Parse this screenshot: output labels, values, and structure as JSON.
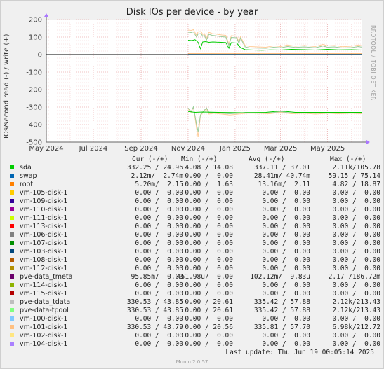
{
  "chart_data": {
    "type": "line",
    "title": "Disk IOs per device - by year",
    "ylabel": "IOs/second read (-) / write (+)",
    "side_text": "RRDTOOL / TOBI OETIKER",
    "ylim": [
      -500,
      200
    ],
    "y_ticks": [
      200,
      100,
      0,
      -100,
      -200,
      -300,
      -400,
      -500
    ],
    "y_tick_labels": [
      "200",
      "100",
      "0",
      "-100",
      "-200",
      "-300",
      "-400",
      "-500"
    ],
    "x_tick_labels": [
      "May 2024",
      "Jul 2024",
      "Sep 2024",
      "Nov 2024",
      "Jan 2025",
      "Mar 2025",
      "May 2025"
    ],
    "x_tick_dates": [
      "2024-05-01",
      "2024-07-01",
      "2024-09-01",
      "2024-11-01",
      "2025-01-01",
      "2025-03-01",
      "2025-05-01"
    ],
    "x_range": [
      "2024-05-01",
      "2025-06-15"
    ],
    "grid": true,
    "series": [
      {
        "name": "pve-data_tdata",
        "color": "#ffcc99",
        "direction": "write",
        "points": [
          [
            "2024-11-01",
            140
          ],
          [
            "2024-11-05",
            138
          ],
          [
            "2024-11-08",
            142
          ],
          [
            "2024-11-12",
            110
          ],
          [
            "2024-11-14",
            130
          ],
          [
            "2024-11-18",
            132
          ],
          [
            "2024-11-20",
            115
          ],
          [
            "2024-11-22",
            120
          ],
          [
            "2024-11-25",
            95
          ],
          [
            "2024-11-28",
            128
          ],
          [
            "2024-12-02",
            120
          ],
          [
            "2024-12-06",
            118
          ],
          [
            "2024-12-10",
            115
          ],
          [
            "2024-12-15",
            112
          ],
          [
            "2024-12-20",
            110
          ],
          [
            "2024-12-24",
            60
          ],
          [
            "2024-12-27",
            108
          ],
          [
            "2025-01-03",
            106
          ],
          [
            "2025-01-06",
            72
          ],
          [
            "2025-01-08",
            103
          ],
          [
            "2025-01-14",
            52
          ],
          [
            "2025-01-20",
            46
          ],
          [
            "2025-01-30",
            44
          ],
          [
            "2025-02-10",
            42
          ],
          [
            "2025-02-20",
            50
          ],
          [
            "2025-03-01",
            46
          ],
          [
            "2025-03-10",
            55
          ],
          [
            "2025-03-20",
            48
          ],
          [
            "2025-04-01",
            52
          ],
          [
            "2025-04-15",
            46
          ],
          [
            "2025-04-25",
            58
          ],
          [
            "2025-05-01",
            50
          ],
          [
            "2025-05-10",
            52
          ],
          [
            "2025-05-20",
            45
          ],
          [
            "2025-06-01",
            48
          ],
          [
            "2025-06-10",
            55
          ],
          [
            "2025-06-15",
            50
          ]
        ]
      },
      {
        "name": "pve-data-tpool",
        "color": "#99cc99",
        "direction": "write",
        "points": [
          [
            "2024-11-01",
            128
          ],
          [
            "2024-11-05",
            126
          ],
          [
            "2024-11-08",
            130
          ],
          [
            "2024-11-12",
            100
          ],
          [
            "2024-11-14",
            118
          ],
          [
            "2024-11-18",
            120
          ],
          [
            "2024-11-20",
            105
          ],
          [
            "2024-11-22",
            110
          ],
          [
            "2024-11-25",
            85
          ],
          [
            "2024-11-28",
            116
          ],
          [
            "2024-12-02",
            110
          ],
          [
            "2024-12-06",
            108
          ],
          [
            "2024-12-10",
            105
          ],
          [
            "2024-12-15",
            102
          ],
          [
            "2024-12-20",
            100
          ],
          [
            "2024-12-24",
            52
          ],
          [
            "2024-12-27",
            98
          ],
          [
            "2025-01-03",
            96
          ],
          [
            "2025-01-06",
            64
          ],
          [
            "2025-01-08",
            94
          ],
          [
            "2025-01-14",
            44
          ],
          [
            "2025-01-20",
            38
          ],
          [
            "2025-01-30",
            37
          ],
          [
            "2025-02-10",
            36
          ],
          [
            "2025-02-20",
            42
          ],
          [
            "2025-03-01",
            39
          ],
          [
            "2025-03-10",
            46
          ],
          [
            "2025-03-20",
            41
          ],
          [
            "2025-04-01",
            44
          ],
          [
            "2025-04-15",
            39
          ],
          [
            "2025-04-25",
            49
          ],
          [
            "2025-05-01",
            42
          ],
          [
            "2025-05-10",
            44
          ],
          [
            "2025-05-20",
            38
          ],
          [
            "2025-06-01",
            40
          ],
          [
            "2025-06-10",
            46
          ],
          [
            "2025-06-15",
            42
          ]
        ]
      },
      {
        "name": "sda",
        "color": "#00cc00",
        "direction": "write",
        "points": [
          [
            "2024-11-01",
            82
          ],
          [
            "2024-11-06",
            80
          ],
          [
            "2024-11-10",
            85
          ],
          [
            "2024-11-14",
            70
          ],
          [
            "2024-11-17",
            34
          ],
          [
            "2024-11-20",
            72
          ],
          [
            "2024-11-24",
            74
          ],
          [
            "2024-11-28",
            70
          ],
          [
            "2024-12-03",
            72
          ],
          [
            "2024-12-08",
            71
          ],
          [
            "2024-12-14",
            70
          ],
          [
            "2024-12-20",
            69
          ],
          [
            "2024-12-24",
            36
          ],
          [
            "2024-12-27",
            68
          ],
          [
            "2025-01-03",
            66
          ],
          [
            "2025-01-08",
            40
          ],
          [
            "2025-01-14",
            28
          ],
          [
            "2025-01-25",
            26
          ],
          [
            "2025-02-05",
            25
          ],
          [
            "2025-02-15",
            27
          ],
          [
            "2025-03-01",
            26
          ],
          [
            "2025-03-15",
            30
          ],
          [
            "2025-04-01",
            28
          ],
          [
            "2025-04-15",
            26
          ],
          [
            "2025-05-01",
            30
          ],
          [
            "2025-05-15",
            27
          ],
          [
            "2025-06-01",
            28
          ],
          [
            "2025-06-15",
            26
          ]
        ]
      },
      {
        "name": "root",
        "color": "#ff8000",
        "direction": "write",
        "points": [
          [
            "2024-11-01",
            4
          ],
          [
            "2025-06-15",
            4
          ]
        ]
      },
      {
        "name": "swap",
        "color": "#0066b3",
        "direction": "write",
        "points": [
          [
            "2024-11-01",
            1
          ],
          [
            "2025-06-15",
            1
          ]
        ]
      },
      {
        "name": "pve-data_tdata",
        "color": "#ffcc99",
        "direction": "read",
        "points": [
          [
            "2024-11-01",
            -310
          ],
          [
            "2024-11-05",
            -330
          ],
          [
            "2024-11-08",
            -300
          ],
          [
            "2024-11-12",
            -420
          ],
          [
            "2024-11-14",
            -470
          ],
          [
            "2024-11-17",
            -350
          ],
          [
            "2024-11-22",
            -320
          ],
          [
            "2024-11-25",
            -310
          ],
          [
            "2024-11-28",
            -340
          ],
          [
            "2024-12-05",
            -335
          ],
          [
            "2024-12-15",
            -340
          ],
          [
            "2024-12-25",
            -345
          ],
          [
            "2025-01-05",
            -340
          ],
          [
            "2025-01-15",
            -335
          ],
          [
            "2025-02-01",
            -335
          ],
          [
            "2025-02-15",
            -338
          ],
          [
            "2025-03-01",
            -330
          ],
          [
            "2025-03-15",
            -338
          ],
          [
            "2025-04-01",
            -335
          ],
          [
            "2025-04-15",
            -340
          ],
          [
            "2025-05-01",
            -335
          ],
          [
            "2025-05-15",
            -338
          ],
          [
            "2025-06-01",
            -335
          ],
          [
            "2025-06-15",
            -338
          ]
        ]
      },
      {
        "name": "pve-data-tpool",
        "color": "#99cc99",
        "direction": "read",
        "points": [
          [
            "2024-11-01",
            -305
          ],
          [
            "2024-11-05",
            -325
          ],
          [
            "2024-11-08",
            -298
          ],
          [
            "2024-11-12",
            -400
          ],
          [
            "2024-11-14",
            -440
          ],
          [
            "2024-11-17",
            -345
          ],
          [
            "2024-11-22",
            -318
          ],
          [
            "2024-11-25",
            -305
          ],
          [
            "2024-11-28",
            -330
          ],
          [
            "2024-12-05",
            -330
          ],
          [
            "2024-12-15",
            -335
          ],
          [
            "2024-12-25",
            -338
          ],
          [
            "2025-01-05",
            -335
          ],
          [
            "2025-01-15",
            -330
          ],
          [
            "2025-02-01",
            -332
          ],
          [
            "2025-02-15",
            -333
          ],
          [
            "2025-03-01",
            -326
          ],
          [
            "2025-03-15",
            -334
          ],
          [
            "2025-04-01",
            -330
          ],
          [
            "2025-04-15",
            -335
          ],
          [
            "2025-05-01",
            -330
          ],
          [
            "2025-05-15",
            -333
          ],
          [
            "2025-06-01",
            -330
          ],
          [
            "2025-06-15",
            -334
          ]
        ]
      },
      {
        "name": "sda",
        "color": "#00cc00",
        "direction": "read",
        "points": [
          [
            "2024-11-01",
            -325
          ],
          [
            "2024-11-10",
            -330
          ],
          [
            "2024-11-20",
            -328
          ],
          [
            "2024-12-10",
            -330
          ],
          [
            "2025-01-10",
            -332
          ],
          [
            "2025-02-10",
            -330
          ],
          [
            "2025-03-01",
            -322
          ],
          [
            "2025-03-20",
            -330
          ],
          [
            "2025-04-20",
            -330
          ],
          [
            "2025-05-20",
            -330
          ],
          [
            "2025-06-15",
            -330
          ]
        ]
      }
    ]
  },
  "legend": {
    "headers": {
      "cur": "Cur (-/+)",
      "min": "Min (-/+)",
      "avg": "Avg (-/+)",
      "max": "Max (-/+)"
    },
    "rows": [
      {
        "name": "sda",
        "color": "#00cc00",
        "cur": "332.25 / 24.96",
        "min": "4.08 / 14.08",
        "avg": "337.11 / 37.01",
        "max": "2.11k/105.78"
      },
      {
        "name": "swap",
        "color": "#0066b3",
        "cur": "2.12m/  2.74m",
        "min": "0.00 /  0.00",
        "avg": "28.41m/ 40.74m",
        "max": "59.15 / 75.14"
      },
      {
        "name": "root",
        "color": "#ff8000",
        "cur": "5.20m/  2.15",
        "min": "0.00 /  1.63",
        "avg": "13.16m/  2.11",
        "max": "4.82 / 18.87"
      },
      {
        "name": "vm-105-disk-1",
        "color": "#ffcc00",
        "cur": "0.00 /  0.00",
        "min": "0.00 /  0.00",
        "avg": "0.00 /  0.00",
        "max": "0.00 /  0.00"
      },
      {
        "name": "vm-109-disk-1",
        "color": "#330099",
        "cur": "0.00 /  0.00",
        "min": "0.00 /  0.00",
        "avg": "0.00 /  0.00",
        "max": "0.00 /  0.00"
      },
      {
        "name": "vm-110-disk-1",
        "color": "#990099",
        "cur": "0.00 /  0.00",
        "min": "0.00 /  0.00",
        "avg": "0.00 /  0.00",
        "max": "0.00 /  0.00"
      },
      {
        "name": "vm-111-disk-1",
        "color": "#ccff00",
        "cur": "0.00 /  0.00",
        "min": "0.00 /  0.00",
        "avg": "0.00 /  0.00",
        "max": "0.00 /  0.00"
      },
      {
        "name": "vm-113-disk-1",
        "color": "#ff0000",
        "cur": "0.00 /  0.00",
        "min": "0.00 /  0.00",
        "avg": "0.00 /  0.00",
        "max": "0.00 /  0.00"
      },
      {
        "name": "vm-106-disk-1",
        "color": "#808080",
        "cur": "0.00 /  0.00",
        "min": "0.00 /  0.00",
        "avg": "0.00 /  0.00",
        "max": "0.00 /  0.00"
      },
      {
        "name": "vm-107-disk-1",
        "color": "#008f00",
        "cur": "0.00 /  0.00",
        "min": "0.00 /  0.00",
        "avg": "0.00 /  0.00",
        "max": "0.00 /  0.00"
      },
      {
        "name": "vm-103-disk-1",
        "color": "#00487d",
        "cur": "0.00 /  0.00",
        "min": "0.00 /  0.00",
        "avg": "0.00 /  0.00",
        "max": "0.00 /  0.00"
      },
      {
        "name": "vm-108-disk-1",
        "color": "#b35a00",
        "cur": "0.00 /  0.00",
        "min": "0.00 /  0.00",
        "avg": "0.00 /  0.00",
        "max": "0.00 /  0.00"
      },
      {
        "name": "vm-112-disk-1",
        "color": "#b38f00",
        "cur": "0.00 /  0.00",
        "min": "0.00 /  0.00",
        "avg": "0.00 /  0.00",
        "max": "0.00 /  0.00"
      },
      {
        "name": "pve-data_tmeta",
        "color": "#6b006b",
        "cur": "95.85m/  0.00",
        "min": "451.98u/  0.00",
        "avg": "102.12m/  9.83u",
        "max": "2.17 /186.72m"
      },
      {
        "name": "vm-114-disk-1",
        "color": "#8fb300",
        "cur": "0.00 /  0.00",
        "min": "0.00 /  0.00",
        "avg": "0.00 /  0.00",
        "max": "0.00 /  0.00"
      },
      {
        "name": "vm-115-disk-1",
        "color": "#b30000",
        "cur": "0.00 /  0.00",
        "min": "0.00 /  0.00",
        "avg": "0.00 /  0.00",
        "max": "0.00 /  0.00"
      },
      {
        "name": "pve-data_tdata",
        "color": "#bebebe",
        "cur": "330.53 / 43.85",
        "min": "0.00 / 20.61",
        "avg": "335.42 / 57.88",
        "max": "2.12k/213.43"
      },
      {
        "name": "pve-data-tpool",
        "color": "#80ff80",
        "cur": "330.53 / 43.85",
        "min": "0.00 / 20.61",
        "avg": "335.42 / 57.88",
        "max": "2.12k/213.43"
      },
      {
        "name": "vm-100-disk-1",
        "color": "#80c9ff",
        "cur": "0.00 /  0.00",
        "min": "0.00 /  0.00",
        "avg": "0.00 /  0.00",
        "max": "0.00 /  0.00"
      },
      {
        "name": "vm-101-disk-1",
        "color": "#ffc080",
        "cur": "330.53 / 43.79",
        "min": "0.00 / 20.56",
        "avg": "335.81 / 57.70",
        "max": "6.98k/212.72"
      },
      {
        "name": "vm-102-disk-1",
        "color": "#ffe680",
        "cur": "0.00 /  0.00",
        "min": "0.00 /  0.00",
        "avg": "0.00 /  0.00",
        "max": "0.00 /  0.00"
      },
      {
        "name": "vm-104-disk-1",
        "color": "#aa80ff",
        "cur": "0.00 /  0.00",
        "min": "0.00 /  0.00",
        "avg": "0.00 /  0.00",
        "max": "0.00 /  0.00"
      }
    ]
  },
  "last_update": "Last update: Thu Jun 19 00:05:14 2025",
  "footer": "Munin 2.0.57"
}
